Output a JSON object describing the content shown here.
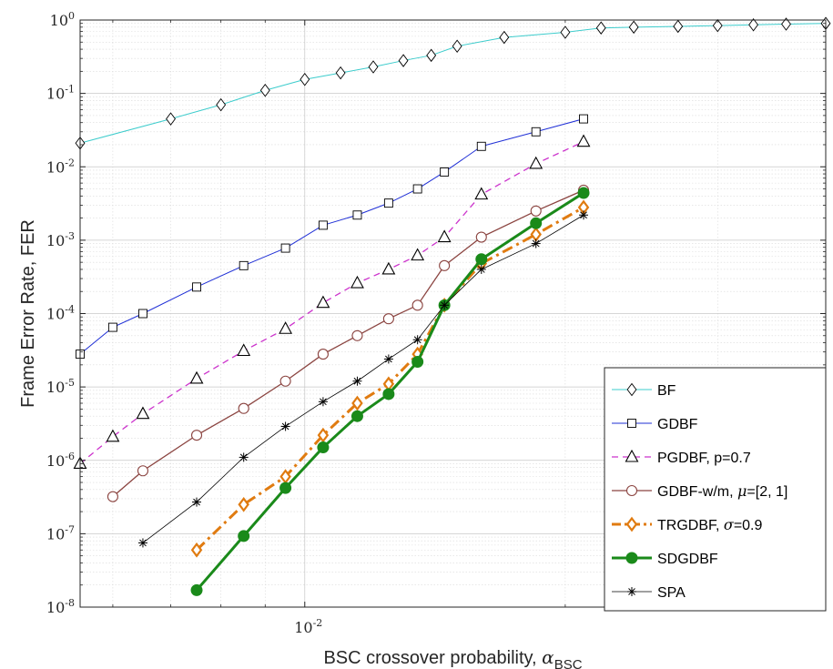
{
  "chart_data": {
    "type": "line",
    "xlabel": "BSC crossover probability, ",
    "xlabel_symbol": "α",
    "xlabel_sub": "BSC",
    "ylabel": "Frame Error Rate, FER",
    "xscale": "log",
    "yscale": "log",
    "xlim": [
      0.0055,
      0.04
    ],
    "ylim": [
      1e-08,
      1
    ],
    "grid": true,
    "legend_position": "bottom-right",
    "x_ticks": [
      {
        "value": 0.01,
        "label": "10",
        "exp": "-2"
      }
    ],
    "y_ticks": [
      {
        "value": 1,
        "label": "10",
        "exp": "0"
      },
      {
        "value": 0.1,
        "label": "10",
        "exp": "-1"
      },
      {
        "value": 0.01,
        "label": "10",
        "exp": "-2"
      },
      {
        "value": 0.001,
        "label": "10",
        "exp": "-3"
      },
      {
        "value": 0.0001,
        "label": "10",
        "exp": "-4"
      },
      {
        "value": 1e-05,
        "label": "10",
        "exp": "-5"
      },
      {
        "value": 1e-06,
        "label": "10",
        "exp": "-6"
      },
      {
        "value": 1e-07,
        "label": "10",
        "exp": "-7"
      },
      {
        "value": 1e-08,
        "label": "10",
        "exp": "-8"
      }
    ],
    "series": [
      {
        "name": "BF",
        "color": "#3ccccc",
        "marker": "diamond",
        "dash": "solid",
        "width": 1,
        "x": [
          0.0055,
          0.007,
          0.008,
          0.009,
          0.01,
          0.011,
          0.012,
          0.013,
          0.014,
          0.015,
          0.017,
          0.02,
          0.022,
          0.024,
          0.027,
          0.03,
          0.033,
          0.036,
          0.04
        ],
        "y": [
          0.021,
          0.045,
          0.07,
          0.11,
          0.155,
          0.19,
          0.23,
          0.28,
          0.33,
          0.44,
          0.58,
          0.68,
          0.78,
          0.8,
          0.82,
          0.84,
          0.86,
          0.88,
          0.9
        ]
      },
      {
        "name": "GDBF",
        "color": "#1f2fd6",
        "marker": "square",
        "dash": "solid",
        "width": 1,
        "x": [
          0.0055,
          0.006,
          0.0065,
          0.0075,
          0.0085,
          0.0095,
          0.0105,
          0.0115,
          0.0125,
          0.0135,
          0.0145,
          0.016,
          0.0185,
          0.021
        ],
        "y": [
          2.8e-05,
          6.5e-05,
          0.0001,
          0.00023,
          0.00045,
          0.00078,
          0.0016,
          0.0022,
          0.0032,
          0.005,
          0.0085,
          0.019,
          0.03,
          0.045
        ]
      },
      {
        "name": "PGDBF, p=0.7",
        "color": "#cc33cc",
        "marker": "triangle",
        "dash": "dashed",
        "width": 1.3,
        "x": [
          0.0055,
          0.006,
          0.0065,
          0.0075,
          0.0085,
          0.0095,
          0.0105,
          0.0115,
          0.0125,
          0.0135,
          0.0145,
          0.016,
          0.0185,
          0.021
        ],
        "y": [
          9e-07,
          2.1e-06,
          4.3e-06,
          1.3e-05,
          3.1e-05,
          6.2e-05,
          0.00014,
          0.00026,
          0.0004,
          0.00062,
          0.0011,
          0.0042,
          0.011,
          0.022
        ]
      },
      {
        "name": "GDBF-w/m, ",
        "name_symbol": "μ",
        "name_tail": "=[2, 1]",
        "color": "#8b4440",
        "marker": "circle",
        "dash": "solid",
        "width": 1.3,
        "x": [
          0.006,
          0.0065,
          0.0075,
          0.0085,
          0.0095,
          0.0105,
          0.0115,
          0.0125,
          0.0135,
          0.0145,
          0.016,
          0.0185,
          0.021
        ],
        "y": [
          3.2e-07,
          7.2e-07,
          2.2e-06,
          5.1e-06,
          1.2e-05,
          2.8e-05,
          5e-05,
          8.5e-05,
          0.00013,
          0.00045,
          0.0011,
          0.0025,
          0.0048
        ]
      },
      {
        "name": "TRGDBF, ",
        "name_symbol": "σ",
        "name_tail": "=0.9",
        "color": "#e07b10",
        "marker": "diamond",
        "dash": "dashdot",
        "width": 3,
        "x": [
          0.0075,
          0.0085,
          0.0095,
          0.0105,
          0.0115,
          0.0125,
          0.0135,
          0.0145,
          0.016,
          0.0185,
          0.021
        ],
        "y": [
          6e-08,
          2.5e-07,
          6e-07,
          2.2e-06,
          6e-06,
          1.1e-05,
          2.8e-05,
          0.00013,
          0.00048,
          0.0012,
          0.0028
        ]
      },
      {
        "name": "SDGDBF",
        "color": "#1a8a1a",
        "marker": "filled-circle",
        "dash": "solid",
        "width": 3,
        "x": [
          0.0075,
          0.0085,
          0.0095,
          0.0105,
          0.0115,
          0.0125,
          0.0135,
          0.0145,
          0.016,
          0.0185,
          0.021
        ],
        "y": [
          1.7e-08,
          9.3e-08,
          4.2e-07,
          1.5e-06,
          4e-06,
          8e-06,
          2.2e-05,
          0.00013,
          0.00055,
          0.0017,
          0.0044
        ]
      },
      {
        "name": "SPA",
        "color": "#000000",
        "marker": "asterisk",
        "dash": "solid",
        "width": 0.8,
        "x": [
          0.0065,
          0.0075,
          0.0085,
          0.0095,
          0.0105,
          0.0115,
          0.0125,
          0.0135,
          0.0145,
          0.016,
          0.0185,
          0.021
        ],
        "y": [
          7.5e-08,
          2.7e-07,
          1.1e-06,
          2.9e-06,
          6.3e-06,
          1.2e-05,
          2.4e-05,
          4.4e-05,
          0.00013,
          0.0004,
          0.0009,
          0.0022
        ]
      }
    ]
  }
}
